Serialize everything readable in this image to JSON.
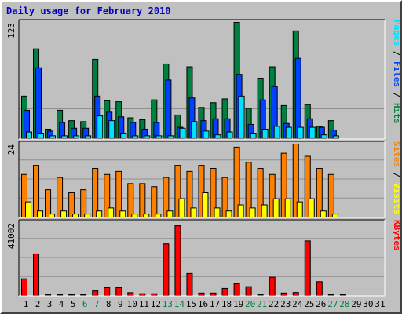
{
  "title": "Daily usage for February 2010",
  "colors": {
    "hits": "#008040",
    "files": "#0040ff",
    "pages": "#00e0ff",
    "visits": "#ffff00",
    "sites": "#ff8000",
    "kbytes": "#ff0000",
    "weekend_label": "#008040",
    "grid": "#909090"
  },
  "chart_data": [
    {
      "type": "bar",
      "panel": "top",
      "ymax_label": "123",
      "ylim": [
        0,
        123
      ],
      "right_legend": [
        {
          "text": "Pages",
          "color": "#00e0ff"
        },
        {
          "text": "/",
          "color": "#000000"
        },
        {
          "text": "Files",
          "color": "#0040ff"
        },
        {
          "text": "/",
          "color": "#000000"
        },
        {
          "text": "Hits",
          "color": "#008040"
        }
      ],
      "series": [
        {
          "name": "Hits",
          "color": "#008040",
          "values": [
            45,
            95,
            10,
            30,
            19,
            18,
            84,
            40,
            39,
            22,
            20,
            41,
            79,
            25,
            76,
            33,
            38,
            42,
            123,
            32,
            64,
            76,
            35,
            114,
            36,
            13,
            19,
            0,
            0,
            0,
            0
          ]
        },
        {
          "name": "Files",
          "color": "#0040ff",
          "values": [
            30,
            75,
            8,
            17,
            11,
            11,
            45,
            28,
            23,
            17,
            10,
            17,
            62,
            12,
            43,
            19,
            21,
            21,
            68,
            15,
            41,
            55,
            16,
            85,
            21,
            12,
            9,
            0,
            0,
            0,
            0
          ]
        },
        {
          "name": "Pages",
          "color": "#00e0ff",
          "values": [
            7,
            5,
            3,
            3,
            3,
            3,
            24,
            19,
            5,
            3,
            3,
            3,
            3,
            11,
            18,
            8,
            4,
            7,
            45,
            5,
            10,
            13,
            12,
            12,
            12,
            4,
            3,
            0,
            0,
            0,
            0
          ]
        }
      ]
    },
    {
      "type": "bar",
      "panel": "middle",
      "ymax_label": "24",
      "ylim": [
        0,
        24
      ],
      "right_legend": [
        {
          "text": "Sites",
          "color": "#ff8000"
        },
        {
          "text": "/",
          "color": "#000000"
        },
        {
          "text": "Visits",
          "color": "#ffff00"
        }
      ],
      "series": [
        {
          "name": "Sites",
          "color": "#ff8000",
          "values": [
            14,
            17,
            9,
            13,
            8,
            9,
            16,
            14,
            15,
            11,
            11,
            10,
            13,
            17,
            15,
            17,
            16,
            13,
            23,
            18,
            16,
            14,
            21,
            24,
            20,
            16,
            14,
            0,
            0,
            0,
            0
          ]
        },
        {
          "name": "Visits",
          "color": "#ffff00",
          "values": [
            5,
            2,
            1,
            2,
            1,
            1,
            2,
            3,
            2,
            1,
            1,
            1,
            2,
            6,
            3,
            8,
            3,
            2,
            4,
            3,
            4,
            6,
            6,
            5,
            6,
            2,
            1,
            0,
            0,
            0,
            0
          ]
        }
      ]
    },
    {
      "type": "bar",
      "panel": "bottom",
      "ymax_label": "41002",
      "ylim": [
        0,
        41002
      ],
      "right_legend": [
        {
          "text": "KBytes",
          "color": "#ff0000"
        }
      ],
      "series": [
        {
          "name": "KBytes",
          "color": "#ff0000",
          "values": [
            9400,
            23400,
            300,
            300,
            300,
            300,
            2600,
            4400,
            4400,
            1600,
            1000,
            1000,
            29000,
            39200,
            12400,
            1400,
            1400,
            4000,
            6600,
            5000,
            400,
            10300,
            1400,
            1700,
            30700,
            7800,
            300,
            300,
            0,
            0,
            0
          ]
        }
      ]
    }
  ],
  "x_labels": [
    "1",
    "2",
    "3",
    "4",
    "5",
    "6",
    "7",
    "8",
    "9",
    "10",
    "11",
    "12",
    "13",
    "14",
    "15",
    "16",
    "17",
    "18",
    "19",
    "20",
    "21",
    "22",
    "23",
    "24",
    "25",
    "26",
    "27",
    "28",
    "29",
    "30",
    "31"
  ],
  "weekend_days": [
    "6",
    "7",
    "13",
    "14",
    "20",
    "21",
    "27",
    "28"
  ]
}
